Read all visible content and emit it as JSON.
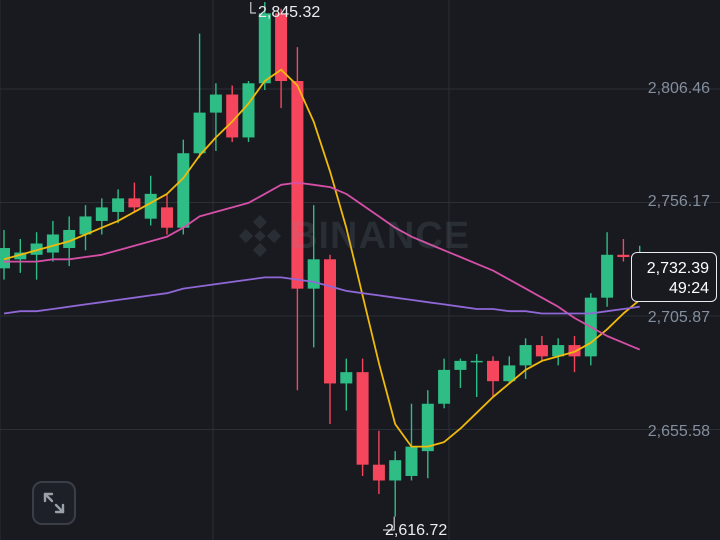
{
  "chart_data": {
    "type": "candlestick",
    "title": "",
    "xlabel": "",
    "ylabel": "",
    "ylim": [
      2595,
      2873
    ],
    "grid": true,
    "y_ticks": [
      "2,806.46",
      "2,756.17",
      "2,705.87",
      "2,655.58"
    ],
    "high_label": "2,845.32",
    "low_label": "2,616.72",
    "current_price": "2,732.39",
    "countdown": "49:24",
    "watermark": "BINANCE",
    "colors": {
      "up": "#2ebd85",
      "down": "#f6465d",
      "ma1": "#f0b90b",
      "ma2": "#d64fa7",
      "ma3": "#8f67d6"
    },
    "candles": [
      {
        "o": 2727,
        "h": 2744,
        "l": 2722,
        "c": 2736
      },
      {
        "o": 2731,
        "h": 2740,
        "l": 2725,
        "c": 2734
      },
      {
        "o": 2733,
        "h": 2743,
        "l": 2722,
        "c": 2738
      },
      {
        "o": 2734,
        "h": 2748,
        "l": 2730,
        "c": 2742
      },
      {
        "o": 2736,
        "h": 2750,
        "l": 2728,
        "c": 2744
      },
      {
        "o": 2742,
        "h": 2755,
        "l": 2735,
        "c": 2750
      },
      {
        "o": 2748,
        "h": 2758,
        "l": 2742,
        "c": 2754
      },
      {
        "o": 2752,
        "h": 2762,
        "l": 2747,
        "c": 2758
      },
      {
        "o": 2758,
        "h": 2765,
        "l": 2752,
        "c": 2754
      },
      {
        "o": 2749,
        "h": 2768,
        "l": 2746,
        "c": 2760
      },
      {
        "o": 2754,
        "h": 2760,
        "l": 2742,
        "c": 2745
      },
      {
        "o": 2745,
        "h": 2784,
        "l": 2742,
        "c": 2778
      },
      {
        "o": 2778,
        "h": 2831,
        "l": 2776,
        "c": 2796
      },
      {
        "o": 2796,
        "h": 2809,
        "l": 2779,
        "c": 2804
      },
      {
        "o": 2804,
        "h": 2808,
        "l": 2783,
        "c": 2785
      },
      {
        "o": 2785,
        "h": 2810,
        "l": 2783,
        "c": 2809
      },
      {
        "o": 2809,
        "h": 2845,
        "l": 2806,
        "c": 2840
      },
      {
        "o": 2840,
        "h": 2842,
        "l": 2798,
        "c": 2810
      },
      {
        "o": 2810,
        "h": 2825,
        "l": 2673,
        "c": 2718
      },
      {
        "o": 2718,
        "h": 2755,
        "l": 2692,
        "c": 2731
      },
      {
        "o": 2731,
        "h": 2733,
        "l": 2658,
        "c": 2676
      },
      {
        "o": 2676,
        "h": 2687,
        "l": 2664,
        "c": 2681
      },
      {
        "o": 2681,
        "h": 2687,
        "l": 2635,
        "c": 2640
      },
      {
        "o": 2640,
        "h": 2655,
        "l": 2627,
        "c": 2633
      },
      {
        "o": 2633,
        "h": 2646,
        "l": 2617,
        "c": 2642
      },
      {
        "o": 2635,
        "h": 2667,
        "l": 2633,
        "c": 2648
      },
      {
        "o": 2646,
        "h": 2673,
        "l": 2634,
        "c": 2667
      },
      {
        "o": 2667,
        "h": 2687,
        "l": 2665,
        "c": 2682
      },
      {
        "o": 2682,
        "h": 2687,
        "l": 2674,
        "c": 2686
      },
      {
        "o": 2686,
        "h": 2689,
        "l": 2670,
        "c": 2686
      },
      {
        "o": 2686,
        "h": 2688,
        "l": 2670,
        "c": 2677
      },
      {
        "o": 2677,
        "h": 2688,
        "l": 2676,
        "c": 2684
      },
      {
        "o": 2684,
        "h": 2696,
        "l": 2678,
        "c": 2693
      },
      {
        "o": 2693,
        "h": 2697,
        "l": 2686,
        "c": 2688
      },
      {
        "o": 2688,
        "h": 2696,
        "l": 2684,
        "c": 2693
      },
      {
        "o": 2693,
        "h": 2697,
        "l": 2681,
        "c": 2688
      },
      {
        "o": 2688,
        "h": 2716,
        "l": 2684,
        "c": 2714
      },
      {
        "o": 2714,
        "h": 2743,
        "l": 2710,
        "c": 2733
      },
      {
        "o": 2733,
        "h": 2740,
        "l": 2730,
        "c": 2732
      },
      {
        "o": 2732,
        "h": 2737,
        "l": 2729,
        "c": 2732
      }
    ],
    "ma_series": [
      {
        "name": "",
        "color": "#f0b90b",
        "values": [
          2731,
          2733,
          2735,
          2737,
          2739,
          2742,
          2745,
          2748,
          2752,
          2756,
          2760,
          2767,
          2777,
          2785,
          2792,
          2800,
          2810,
          2815,
          2808,
          2792,
          2770,
          2745,
          2715,
          2685,
          2658,
          2648,
          2648,
          2650,
          2656,
          2663,
          2670,
          2676,
          2682,
          2686,
          2688,
          2690,
          2694,
          2700,
          2707,
          2713
        ]
      },
      {
        "name": "",
        "color": "#d64fa7",
        "values": [
          2730,
          2730,
          2730,
          2731,
          2731,
          2732,
          2733,
          2735,
          2737,
          2739,
          2741,
          2745,
          2750,
          2752,
          2754,
          2756,
          2760,
          2764,
          2765,
          2764,
          2763,
          2760,
          2755,
          2750,
          2745,
          2741,
          2738,
          2735,
          2732,
          2729,
          2726,
          2722,
          2718,
          2714,
          2710,
          2705,
          2701,
          2697,
          2694,
          2691
        ]
      },
      {
        "name": "",
        "color": "#8f67d6",
        "values": [
          2707,
          2708,
          2708,
          2709,
          2710,
          2711,
          2712,
          2713,
          2714,
          2715,
          2716,
          2718,
          2719,
          2720,
          2721,
          2722,
          2723,
          2723,
          2722,
          2721,
          2719,
          2717,
          2716,
          2715,
          2714,
          2713,
          2712,
          2711,
          2710,
          2709,
          2709,
          2708,
          2708,
          2707,
          2707,
          2707,
          2707,
          2708,
          2709,
          2710
        ]
      }
    ]
  },
  "icons": {
    "expand": "expand-arrows-icon",
    "watermark_logo": "binance-logo-icon"
  }
}
